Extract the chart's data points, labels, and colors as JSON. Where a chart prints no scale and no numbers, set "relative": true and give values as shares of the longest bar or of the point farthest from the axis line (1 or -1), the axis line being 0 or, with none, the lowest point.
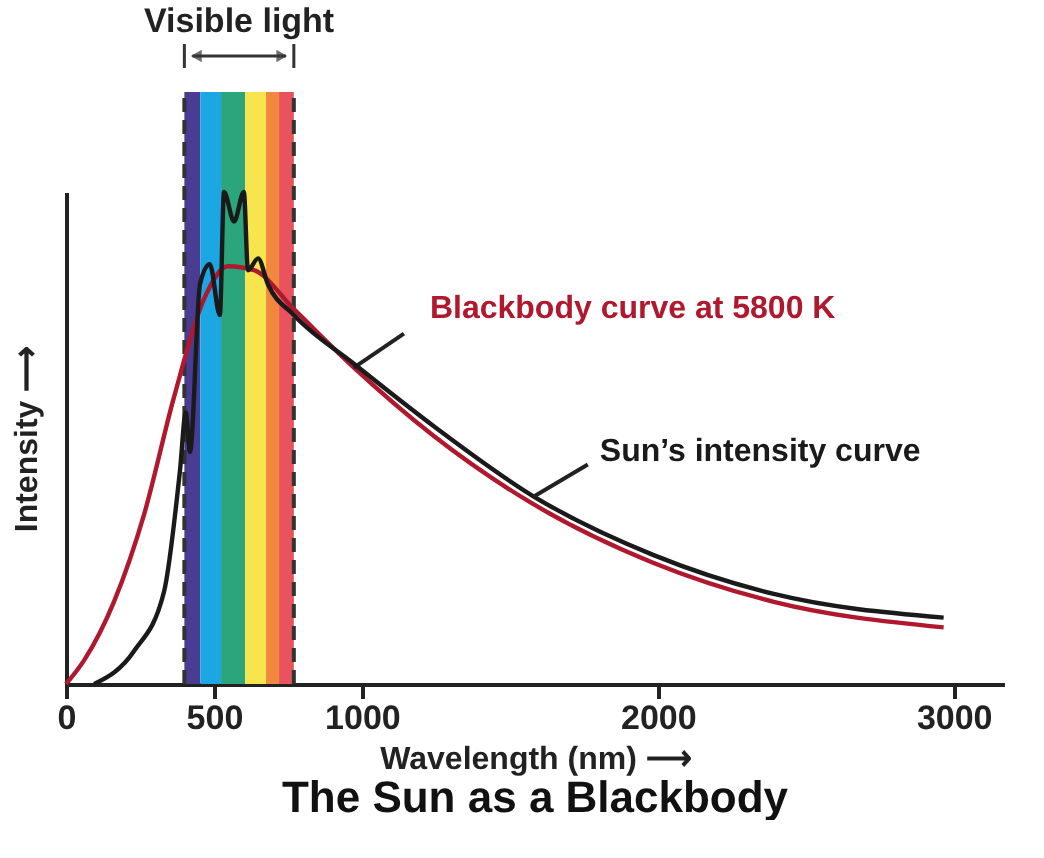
{
  "chart_data": {
    "type": "line",
    "title": "The Sun as a Blackbody",
    "xlabel": "Wavelength (nm) ⟶",
    "ylabel": "Intensity ⟶",
    "relative": true,
    "xlim": [
      0,
      3170
    ],
    "xticks": [
      0,
      500,
      {
        "value": 1000,
        "label": "1000"
      },
      {
        "value": 2000,
        "label": "2000"
      },
      {
        "value": 3000,
        "label": "3000"
      }
    ],
    "line_style": "solid",
    "grid": false,
    "marker": "none",
    "series": [
      {
        "name": "Blackbody curve at 5800 K",
        "color": "#b0182e",
        "x": [
          0,
          61,
          162,
          264,
          365,
          466,
          547,
          635,
          770,
          973,
          1243,
          1581,
          1986,
          2392,
          2966
        ],
        "values": [
          0,
          0.048,
          0.167,
          0.345,
          0.583,
          0.782,
          0.849,
          0.841,
          0.762,
          0.643,
          0.504,
          0.365,
          0.246,
          0.167,
          0.115
        ]
      },
      {
        "name": "Sun’s intensity curve",
        "color": "#1a1a1a",
        "x": [
          95,
          230,
          331,
          385,
          405,
          419,
          453,
          486,
          520,
          534,
          568,
          601,
          615,
          649,
          682,
          770,
          973,
          1243,
          1581,
          1986,
          2392,
          2966
        ],
        "values": [
          0,
          0.067,
          0.187,
          0.433,
          0.552,
          0.472,
          0.813,
          0.853,
          0.75,
          1.0,
          0.94,
          1.0,
          0.841,
          0.865,
          0.813,
          0.75,
          0.651,
          0.524,
          0.381,
          0.262,
          0.183,
          0.135
        ]
      }
    ],
    "bands": [
      {
        "axis": "x",
        "from": 400,
        "to": 454,
        "color": "#4a3c92"
      },
      {
        "axis": "x",
        "from": 454,
        "to": 524,
        "color": "#1ca6e3"
      },
      {
        "axis": "x",
        "from": 524,
        "to": 605,
        "color": "#2aa57c"
      },
      {
        "axis": "x",
        "from": 605,
        "to": 676,
        "color": "#f6e54c"
      },
      {
        "axis": "x",
        "from": 676,
        "to": 720,
        "color": "#f2883e"
      },
      {
        "axis": "x",
        "from": 720,
        "to": 770,
        "color": "#e9535e"
      }
    ],
    "ref_lines": [
      {
        "axis": "x",
        "value": 400,
        "color": "#333333",
        "line_style": "dashed"
      },
      {
        "axis": "x",
        "value": 770,
        "color": "#333333",
        "line_style": "dashed"
      }
    ],
    "annotations": [
      "Visible light"
    ]
  }
}
